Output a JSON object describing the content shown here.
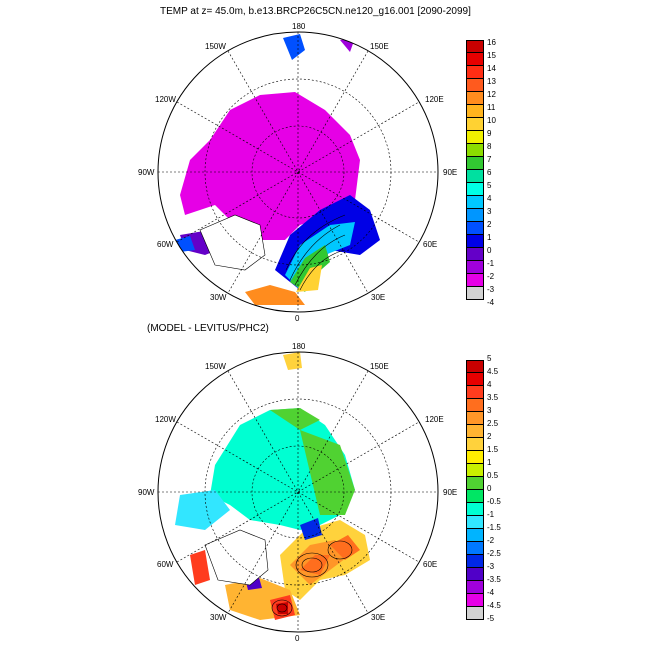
{
  "panel_top": {
    "title": "TEMP at z=  45.0m, b.e13.BRCP26C5CN.ne120_g16.001 [2090-2099]",
    "lon_labels": {
      "n180": "180",
      "w150": "150W",
      "e150": "150E",
      "w120": "120W",
      "e120": "120E",
      "w90": "90W",
      "e90": "90E",
      "w60": "60W",
      "e60": "60E",
      "w30": "30W",
      "e30": "30E",
      "n0": "0"
    },
    "colorbar": {
      "labels": [
        "16",
        "15",
        "14",
        "13",
        "12",
        "11",
        "10",
        "9",
        "8",
        "7",
        "6",
        "5",
        "4",
        "3",
        "2",
        "1",
        "0",
        "-1",
        "-2",
        "-3",
        "-4"
      ],
      "colors": [
        "#c80000",
        "#e60000",
        "#ff2d14",
        "#ff5a1e",
        "#ff8c1e",
        "#ffb41e",
        "#ffd232",
        "#f0f000",
        "#8cdc00",
        "#32c832",
        "#00e0a0",
        "#00ffe6",
        "#00c8ff",
        "#0096ff",
        "#0050ff",
        "#0000e6",
        "#6400c8",
        "#a000dc",
        "#e600e6",
        "#d2d2d2"
      ]
    }
  },
  "panel_bottom": {
    "title": "(MODEL - LEVITUS/PHC2)",
    "lon_labels": {
      "n180": "180",
      "w150": "150W",
      "e150": "150E",
      "w120": "120W",
      "e120": "120E",
      "w90": "90W",
      "e90": "90E",
      "w60": "60W",
      "e60": "60E",
      "w30": "30W",
      "e30": "30E",
      "n0": "0"
    },
    "colorbar": {
      "labels": [
        "5",
        "4.5",
        "4",
        "3.5",
        "3",
        "2.5",
        "2",
        "1.5",
        "1",
        "0.5",
        "0",
        "-0.5",
        "-1",
        "-1.5",
        "-2",
        "-2.5",
        "-3",
        "-3.5",
        "-4",
        "-4.5",
        "-5"
      ],
      "colors": [
        "#c80000",
        "#e60000",
        "#ff3c1e",
        "#ff6e1e",
        "#ff9628",
        "#ffb432",
        "#ffd23c",
        "#ffee00",
        "#c8f000",
        "#50d232",
        "#00e664",
        "#00ffd2",
        "#32e6ff",
        "#00b4ff",
        "#0078ff",
        "#0028e6",
        "#5000c8",
        "#a000dc",
        "#e600e6",
        "#d2d2d2"
      ]
    }
  },
  "colors": {
    "ocean_magenta": "#e600e6",
    "ocean_cyan": "#00ffe6",
    "land": "#ffffff"
  }
}
